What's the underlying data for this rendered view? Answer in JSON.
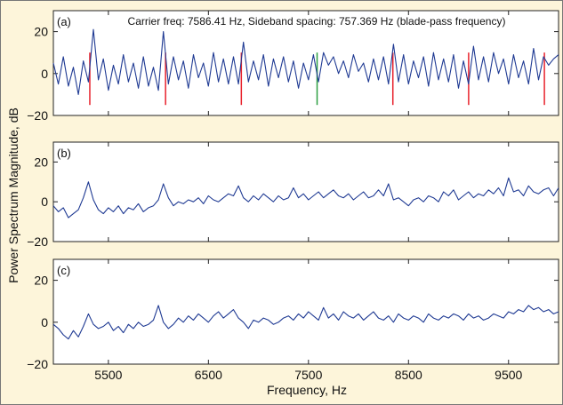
{
  "ylabel": "Power Spectrum Magnitude, dB",
  "xlabel": "Frequency, Hz",
  "colors": {
    "background": "#fdf5da",
    "plot_bg": "#ffffff",
    "signal": "#1f3a93",
    "sideband_marker": "#e8212b",
    "carrier_marker": "#2ea043"
  },
  "chart_data": [
    {
      "type": "line",
      "panel": "(a)",
      "annotation": "Carrier freq: 7586.41 Hz, Sideband spacing: 757.369 Hz  (blade-pass frequency)",
      "xlim": [
        4950,
        10000
      ],
      "ylim": [
        -20,
        30
      ],
      "yticks": [
        20,
        0,
        -20
      ],
      "carrier_freq": 7586.41,
      "sideband_spacing": 757.369,
      "marker_freqs": [
        5314.3,
        6071.7,
        6829.0,
        7586.41,
        8343.8,
        9101.1,
        9858.5
      ],
      "marker_range_db": [
        -15,
        10
      ],
      "series": [
        {
          "x": [
            4950,
            5000,
            5050,
            5100,
            5150,
            5200,
            5250,
            5300,
            5350,
            5400,
            5450,
            5500,
            5550,
            5600,
            5650,
            5700,
            5750,
            5800,
            5850,
            5900,
            5950,
            6000,
            6050,
            6100,
            6150,
            6200,
            6250,
            6300,
            6350,
            6400,
            6450,
            6500,
            6550,
            6600,
            6650,
            6700,
            6750,
            6800,
            6850,
            6900,
            6950,
            7000,
            7050,
            7100,
            7150,
            7200,
            7250,
            7300,
            7350,
            7400,
            7450,
            7500,
            7550,
            7600,
            7650,
            7700,
            7750,
            7800,
            7850,
            7900,
            7950,
            8000,
            8050,
            8100,
            8150,
            8200,
            8250,
            8300,
            8350,
            8400,
            8450,
            8500,
            8550,
            8600,
            8650,
            8700,
            8750,
            8800,
            8850,
            8900,
            8950,
            9000,
            9050,
            9100,
            9150,
            9200,
            9250,
            9300,
            9350,
            9400,
            9450,
            9500,
            9550,
            9600,
            9650,
            9700,
            9750,
            9800,
            9850,
            9900,
            9950,
            10000
          ],
          "y": [
            5,
            -5,
            8,
            -6,
            3,
            -10,
            6,
            -4,
            21,
            -3,
            7,
            -8,
            4,
            -5,
            9,
            -4,
            5,
            -7,
            8,
            -6,
            3,
            -8,
            20,
            -5,
            8,
            -3,
            6,
            -7,
            9,
            -2,
            5,
            -6,
            10,
            -4,
            7,
            -5,
            8,
            -5,
            15,
            -4,
            6,
            -3,
            9,
            -6,
            7,
            -2,
            8,
            -4,
            6,
            -7,
            5,
            -3,
            9,
            -4,
            10,
            4,
            8,
            0,
            6,
            -2,
            9,
            1,
            5,
            -4,
            7,
            -3,
            8,
            -5,
            14,
            -4,
            9,
            -5,
            6,
            -2,
            8,
            -6,
            10,
            -3,
            7,
            -4,
            9,
            -7,
            6,
            -5,
            13,
            -3,
            8,
            -4,
            10,
            0,
            7,
            -5,
            9,
            -2,
            6,
            -5,
            12,
            -3,
            8,
            4,
            7,
            9
          ]
        }
      ]
    },
    {
      "type": "line",
      "panel": "(b)",
      "xlim": [
        4950,
        10000
      ],
      "ylim": [
        -20,
        30
      ],
      "yticks": [
        20,
        0,
        -20
      ],
      "series": [
        {
          "x": [
            4950,
            5000,
            5050,
            5100,
            5150,
            5200,
            5250,
            5300,
            5350,
            5400,
            5450,
            5500,
            5550,
            5600,
            5650,
            5700,
            5750,
            5800,
            5850,
            5900,
            5950,
            6000,
            6050,
            6100,
            6150,
            6200,
            6250,
            6300,
            6350,
            6400,
            6450,
            6500,
            6550,
            6600,
            6650,
            6700,
            6750,
            6800,
            6850,
            6900,
            6950,
            7000,
            7050,
            7100,
            7150,
            7200,
            7250,
            7300,
            7350,
            7400,
            7450,
            7500,
            7550,
            7600,
            7650,
            7700,
            7750,
            7800,
            7850,
            7900,
            7950,
            8000,
            8050,
            8100,
            8150,
            8200,
            8250,
            8300,
            8350,
            8400,
            8450,
            8500,
            8550,
            8600,
            8650,
            8700,
            8750,
            8800,
            8850,
            8900,
            8950,
            9000,
            9050,
            9100,
            9150,
            9200,
            9250,
            9300,
            9350,
            9400,
            9450,
            9500,
            9550,
            9600,
            9650,
            9700,
            9750,
            9800,
            9850,
            9900,
            9950,
            10000
          ],
          "y": [
            -2,
            -5,
            -3,
            -8,
            -6,
            -4,
            2,
            10,
            1,
            -4,
            -6,
            -3,
            -5,
            -2,
            -6,
            -3,
            -4,
            -1,
            -5,
            -3,
            -2,
            1,
            9,
            2,
            -2,
            0,
            -1,
            1,
            0,
            2,
            -1,
            3,
            1,
            0,
            2,
            4,
            3,
            8,
            2,
            0,
            3,
            1,
            4,
            2,
            0,
            3,
            1,
            2,
            7,
            2,
            4,
            1,
            3,
            5,
            2,
            4,
            6,
            3,
            2,
            4,
            1,
            3,
            5,
            2,
            3,
            6,
            3,
            9,
            1,
            2,
            0,
            -2,
            1,
            2,
            0,
            3,
            2,
            0,
            5,
            3,
            6,
            1,
            3,
            5,
            2,
            4,
            3,
            6,
            4,
            7,
            3,
            12,
            5,
            6,
            3,
            8,
            5,
            4,
            6,
            7,
            3,
            7
          ]
        }
      ]
    },
    {
      "type": "line",
      "panel": "(c)",
      "xlim": [
        4950,
        10000
      ],
      "ylim": [
        -20,
        30
      ],
      "yticks": [
        20,
        0,
        -20
      ],
      "xticks": [
        5500,
        6500,
        7500,
        8500,
        9500
      ],
      "series": [
        {
          "x": [
            4950,
            5000,
            5050,
            5100,
            5150,
            5200,
            5250,
            5300,
            5350,
            5400,
            5450,
            5500,
            5550,
            5600,
            5650,
            5700,
            5750,
            5800,
            5850,
            5900,
            5950,
            6000,
            6050,
            6100,
            6150,
            6200,
            6250,
            6300,
            6350,
            6400,
            6450,
            6500,
            6550,
            6600,
            6650,
            6700,
            6750,
            6800,
            6850,
            6900,
            6950,
            7000,
            7050,
            7100,
            7150,
            7200,
            7250,
            7300,
            7350,
            7400,
            7450,
            7500,
            7550,
            7600,
            7650,
            7700,
            7750,
            7800,
            7850,
            7900,
            7950,
            8000,
            8050,
            8100,
            8150,
            8200,
            8250,
            8300,
            8350,
            8400,
            8450,
            8500,
            8550,
            8600,
            8650,
            8700,
            8750,
            8800,
            8850,
            8900,
            8950,
            9000,
            9050,
            9100,
            9150,
            9200,
            9250,
            9300,
            9350,
            9400,
            9450,
            9500,
            9550,
            9600,
            9650,
            9700,
            9750,
            9800,
            9850,
            9900,
            9950,
            10000
          ],
          "y": [
            -1,
            -3,
            -6,
            -8,
            -4,
            -7,
            -2,
            4,
            -1,
            -3,
            -2,
            0,
            -4,
            -2,
            -5,
            -1,
            -3,
            0,
            -2,
            -1,
            1,
            8,
            0,
            -3,
            -1,
            2,
            0,
            3,
            1,
            4,
            2,
            0,
            3,
            5,
            2,
            4,
            6,
            2,
            0,
            -3,
            1,
            0,
            2,
            1,
            -1,
            0,
            2,
            3,
            1,
            4,
            2,
            5,
            3,
            1,
            7,
            2,
            4,
            1,
            5,
            3,
            2,
            4,
            1,
            3,
            5,
            2,
            1,
            3,
            0,
            4,
            2,
            1,
            3,
            2,
            0,
            4,
            2,
            1,
            3,
            2,
            4,
            3,
            1,
            4,
            2,
            3,
            1,
            2,
            4,
            3,
            2,
            5,
            4,
            6,
            5,
            8,
            6,
            7,
            5,
            6,
            4,
            5
          ]
        }
      ]
    }
  ]
}
